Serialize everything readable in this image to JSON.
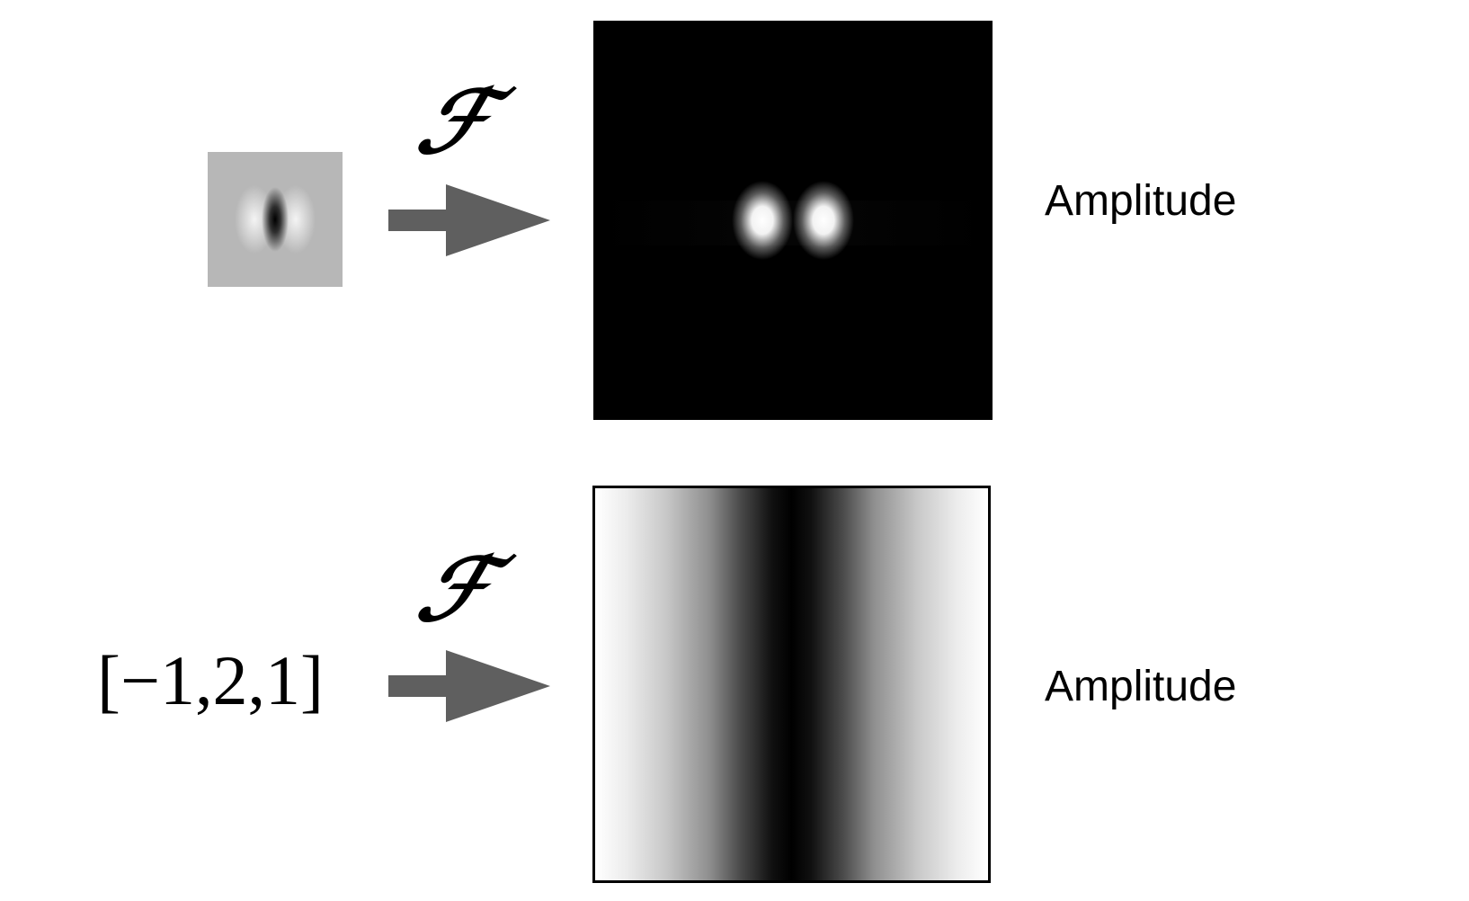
{
  "rows": [
    {
      "input_kind": "gabor-filter-image",
      "operator_symbol": "ℱ",
      "spectrum_kind": "two-bright-blobs-on-black",
      "output_label": "Amplitude"
    },
    {
      "input_text": "[−1,2,1]",
      "operator_symbol": "ℱ",
      "spectrum_kind": "horizontal-gradient-dark-center",
      "output_label": "Amplitude"
    }
  ],
  "colors": {
    "arrow": "#5f5f5f",
    "spectrum_background": "#000000",
    "page_background": "#ffffff"
  },
  "icons": {
    "transform_arrow": "right-arrow-icon"
  }
}
